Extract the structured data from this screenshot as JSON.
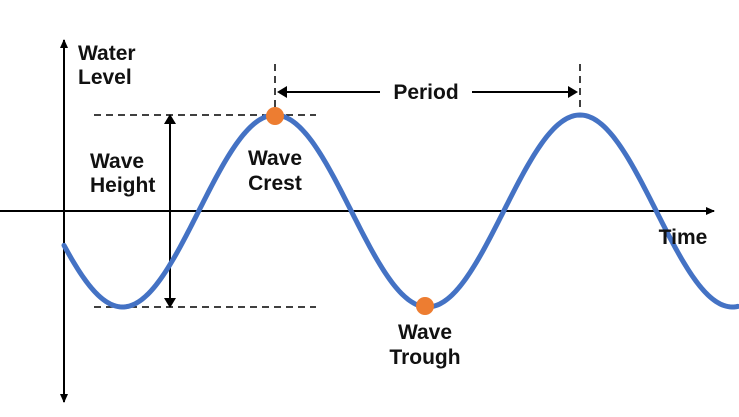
{
  "labels": {
    "y_axis_line1": "Water",
    "y_axis_line2": "Level",
    "x_axis": "Time",
    "period": "Period",
    "wave_height_line1": "Wave",
    "wave_height_line2": "Height",
    "crest_line1": "Wave",
    "crest_line2": "Crest",
    "trough_line1": "Wave",
    "trough_line2": "Trough"
  },
  "colors": {
    "wave": "#4472C4",
    "marker": "#ED7D31",
    "axis": "#000000"
  }
}
